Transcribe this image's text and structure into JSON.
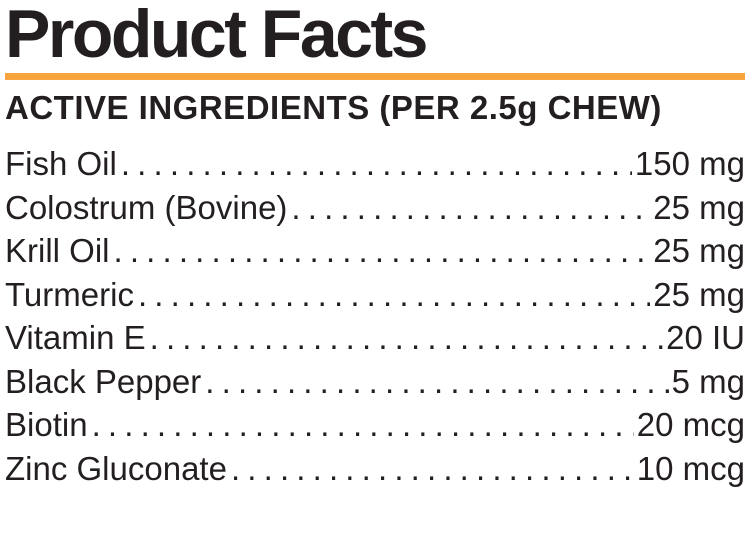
{
  "label": {
    "title": "Product Facts",
    "section_heading": "ACTIVE INGREDIENTS (PER 2.5g CHEW)",
    "accent_color": "#f8a53e",
    "text_color": "#231f20",
    "ingredients": [
      {
        "name": "Fish Oil",
        "amount": "150 mg"
      },
      {
        "name": "Colostrum (Bovine)",
        "amount": "25 mg"
      },
      {
        "name": "Krill Oil",
        "amount": "25 mg"
      },
      {
        "name": "Turmeric",
        "amount": "25 mg"
      },
      {
        "name": "Vitamin E",
        "amount": "20 IU"
      },
      {
        "name": "Black Pepper",
        "amount": "5 mg"
      },
      {
        "name": "Biotin",
        "amount": "20 mcg"
      },
      {
        "name": "Zinc Gluconate",
        "amount": "10 mcg"
      }
    ]
  }
}
